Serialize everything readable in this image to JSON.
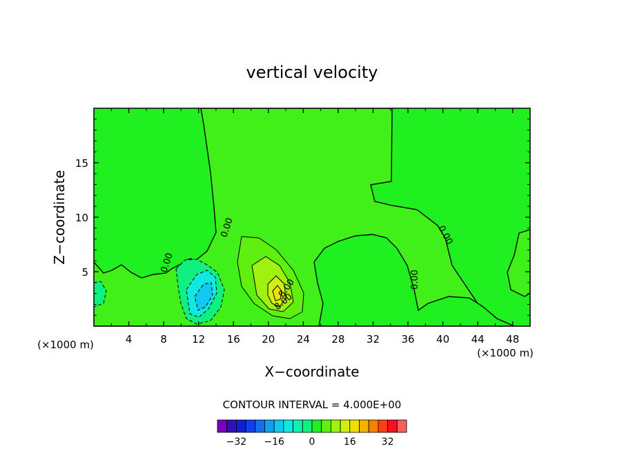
{
  "chart_data": {
    "type": "heatmap",
    "title": "vertical velocity",
    "xlabel": "X−coordinate",
    "ylabel": "Z−coordinate",
    "x_unit_left": "(×1000 m)",
    "x_unit_right": "(×1000 m)",
    "xlim": [
      0,
      50
    ],
    "ylim": [
      0,
      20
    ],
    "x_ticks": [
      4,
      8,
      12,
      16,
      20,
      24,
      28,
      32,
      36,
      40,
      44,
      48
    ],
    "y_ticks": [
      5,
      10,
      15
    ],
    "contour_interval_text": "CONTOUR INTERVAL = 4.000E+00",
    "colorbar": {
      "labels": [
        "−32",
        "−16",
        "0",
        "16",
        "32"
      ],
      "label_values": [
        -32,
        -16,
        0,
        16,
        32
      ],
      "min": -40,
      "max": 40,
      "step": 4,
      "colors": [
        "#7a00c0",
        "#3010b8",
        "#1020d0",
        "#1040f0",
        "#1070f0",
        "#10a0f0",
        "#10c8f0",
        "#10e8e0",
        "#10f0b0",
        "#10f080",
        "#20f020",
        "#60f010",
        "#a0f010",
        "#d0f010",
        "#f0e000",
        "#f8b000",
        "#f88000",
        "#f84010",
        "#f81020",
        "#f86060"
      ]
    },
    "contour_labels": [
      "0.00",
      "0.00",
      "0.00",
      "0.00",
      "8.00",
      "8.00",
      "0.00"
    ],
    "features": [
      {
        "kind": "downdraft",
        "center_x": 13,
        "center_z": 3,
        "min_value": -16
      },
      {
        "kind": "updraft",
        "center_x": 21,
        "center_z": 3.5,
        "max_value": 12
      }
    ]
  }
}
